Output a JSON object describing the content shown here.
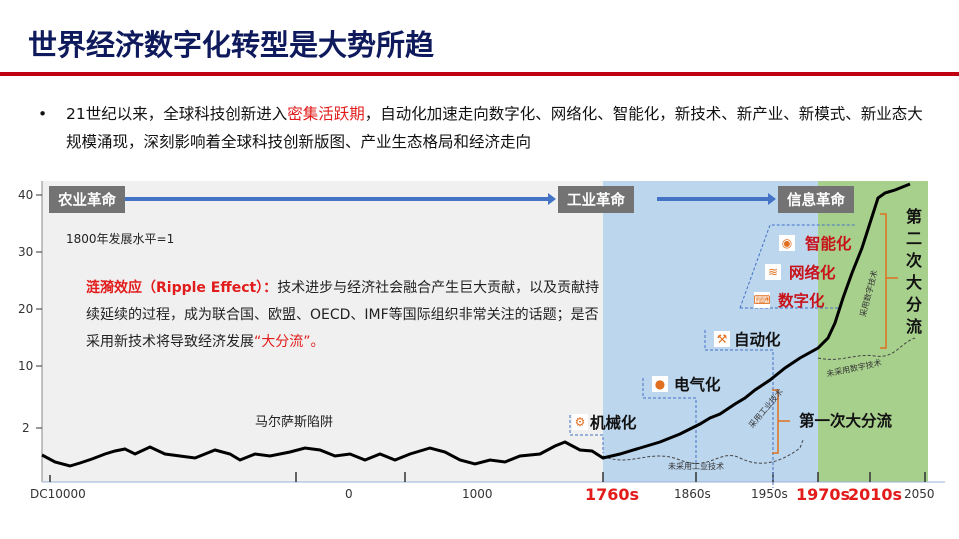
{
  "title": "世界经济数字化转型是大势所趋",
  "bullet": {
    "before": "21世纪以来，全球科技创新进入",
    "highlight": "密集活跃期",
    "after": "，自动化加速走向数字化、网络化、智能化，新技术、新产业、新模式、新业态大规模涌现，深刻影响着全球科技创新版图、产业生态格局和经济走向"
  },
  "figure": {
    "y_ticks": [
      "40",
      "30",
      "20",
      "10",
      "2"
    ],
    "x_ticks": [
      "DC10000",
      "0",
      "1000",
      "1760s",
      "1860s",
      "1950s",
      "1970s",
      "2010s",
      "2050"
    ],
    "eras": [
      "农业革命",
      "工业革命",
      "信息革命"
    ],
    "baseline_note": "1800年发展水平=1",
    "ripple": {
      "term": "涟漪效应（Ripple Effect）：",
      "text1": "技术进步与经济社会融合产生巨大贡献，以及贡献持续延续的过程，成为联合国、欧盟、OECD、IMF等国际组织非常关注的话题；是否采用新技术将导致经济发展",
      "highlight": "“大分流”。"
    },
    "malthus": "马尔萨斯陷阱",
    "stages": [
      "机械化",
      "电气化",
      "自动化",
      "数字化",
      "网络化",
      "智能化"
    ],
    "stage_icons": [
      "gears-icon",
      "lightbulb-icon",
      "robot-arm-icon",
      "digital-icon",
      "wifi-icon",
      "brain-head-icon"
    ],
    "first_divergence": "第一次大分流",
    "second_divergence": "第二次大分流",
    "line_labels": {
      "industrial_adopt": "采用工业技术",
      "industrial_not": "未采用工业技术",
      "digital_adopt": "采用数字技术",
      "digital_not": "未采用数字技术"
    },
    "colors": {
      "agri_bg": "#f0f0f0",
      "industrial_bg": "#bcd6ee",
      "info_bg": "#a8d08d",
      "accent": "#e21b1b",
      "arrow": "#4472c4",
      "bracket": "#e07020"
    }
  }
}
